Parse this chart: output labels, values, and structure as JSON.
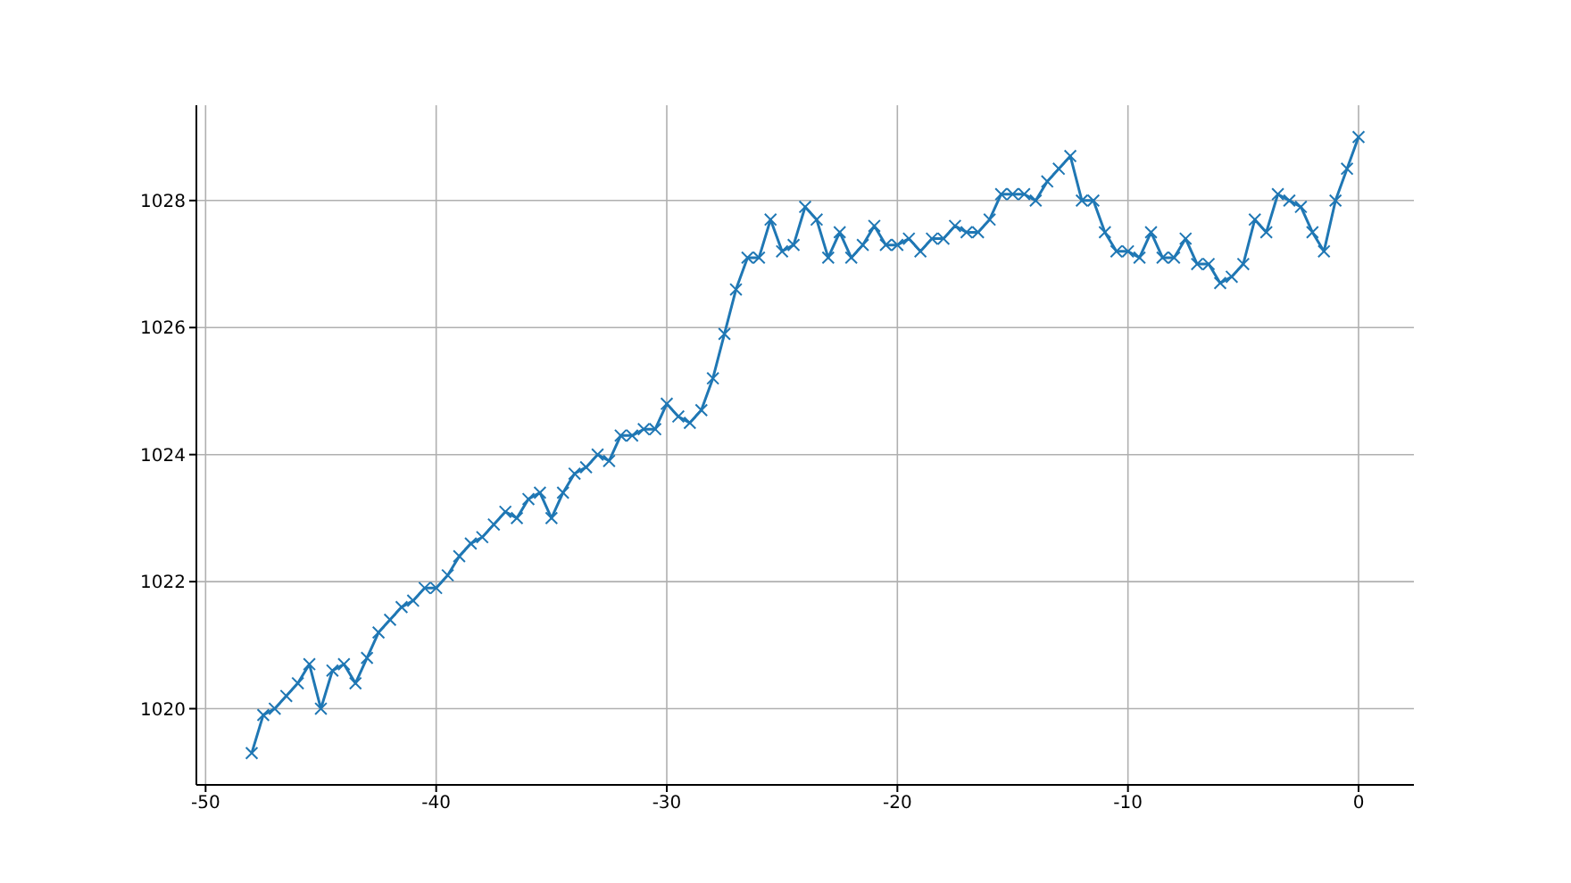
{
  "chart_data": {
    "type": "line",
    "x": [
      -48,
      -47.5,
      -47,
      -46.5,
      -46,
      -45.5,
      -45,
      -44.5,
      -44,
      -43.5,
      -43,
      -42.5,
      -42,
      -41.5,
      -41,
      -40.5,
      -40,
      -39.5,
      -39,
      -38.5,
      -38,
      -37.5,
      -37,
      -36.5,
      -36,
      -35.5,
      -35,
      -34.5,
      -34,
      -33.5,
      -33,
      -32.5,
      -32,
      -31.5,
      -31,
      -30.5,
      -30,
      -29.5,
      -29,
      -28.5,
      -28,
      -27.5,
      -27,
      -26.5,
      -26,
      -25.5,
      -25,
      -24.5,
      -24,
      -23.5,
      -23,
      -22.5,
      -22,
      -21.5,
      -21,
      -20.5,
      -20,
      -19.5,
      -19,
      -18.5,
      -18,
      -17.5,
      -17,
      -16.5,
      -16,
      -15.5,
      -15,
      -14.5,
      -14,
      -13.5,
      -13,
      -12.5,
      -12,
      -11.5,
      -11,
      -10.5,
      -10,
      -9.5,
      -9,
      -8.5,
      -8,
      -7.5,
      -7,
      -6.5,
      -6,
      -5.5,
      -5,
      -4.5,
      -4,
      -3.5,
      -3,
      -2.5,
      -2,
      -1.5,
      -1,
      -0.5,
      0
    ],
    "series": [
      {
        "color": "#1f77b4",
        "values": [
          1019.3,
          1019.9,
          1020.0,
          1020.2,
          1020.4,
          1020.7,
          1020.0,
          1020.6,
          1020.7,
          1020.4,
          1020.8,
          1021.2,
          1021.4,
          1021.6,
          1021.7,
          1021.9,
          1021.9,
          1022.1,
          1022.4,
          1022.6,
          1022.7,
          1022.9,
          1023.1,
          1023.0,
          1023.3,
          1023.4,
          1023.0,
          1023.4,
          1023.7,
          1023.8,
          1024.0,
          1023.9,
          1024.3,
          1024.3,
          1024.4,
          1024.4,
          1024.8,
          1024.6,
          1024.5,
          1024.7,
          1025.2,
          1025.9,
          1026.6,
          1027.1,
          1027.1,
          1027.7,
          1027.2,
          1027.3,
          1027.9,
          1027.7,
          1027.1,
          1027.5,
          1027.1,
          1027.3,
          1027.6,
          1027.3,
          1027.3,
          1027.4,
          1027.2,
          1027.4,
          1027.4,
          1027.6,
          1027.5,
          1027.5,
          1027.7,
          1028.1,
          1028.1,
          1028.1,
          1028.0,
          1028.3,
          1028.5,
          1028.7,
          1028.0,
          1028.0,
          1027.5,
          1027.2,
          1027.2,
          1027.1,
          1027.5,
          1027.1,
          1027.1,
          1027.4,
          1027.0,
          1027.0,
          1026.7,
          1026.8,
          1027.0,
          1027.7,
          1027.5,
          1028.1,
          1028.0,
          1027.9,
          1027.5,
          1027.2,
          1028.0,
          1028.5,
          1029.0
        ]
      }
    ],
    "xlim": [
      -50.4,
      2.4
    ],
    "xticks": [
      -50,
      -40,
      -30,
      -20,
      -10,
      0
    ],
    "ylim": [
      1018.8,
      1029.5
    ],
    "yticks": [
      1020,
      1022,
      1024,
      1026,
      1028
    ],
    "grid": true,
    "marker": "cross",
    "line_style": "solid"
  }
}
